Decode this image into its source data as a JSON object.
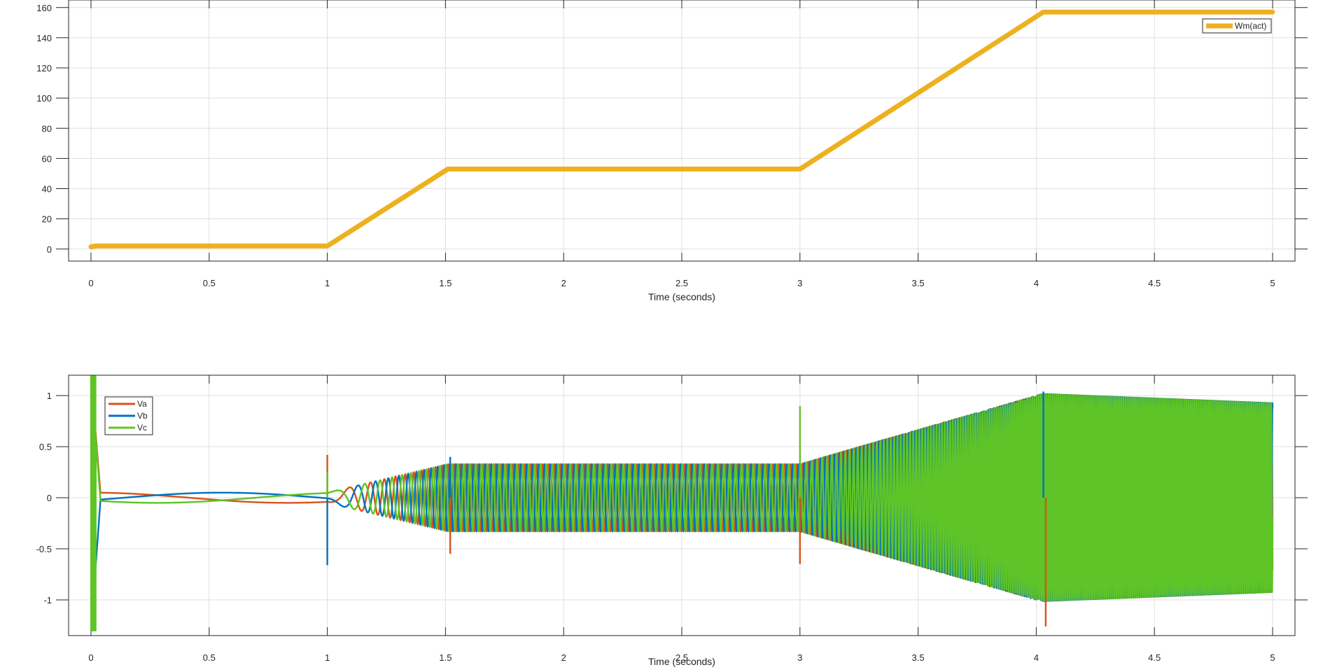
{
  "chart_data": [
    {
      "type": "line",
      "xlabel": "Time (seconds)",
      "ylabel": "",
      "xlim": [
        -0.1,
        5.1
      ],
      "ylim": [
        -8,
        165
      ],
      "xticks": [
        0,
        0.5,
        1,
        1.5,
        2,
        2.5,
        3,
        3.5,
        4,
        4.5,
        5
      ],
      "xtick_labels": [
        "0",
        "0.5",
        "1",
        "1.5",
        "2",
        "2.5",
        "3",
        "3.5",
        "4",
        "4.5",
        "5"
      ],
      "yticks": [
        0,
        20,
        40,
        60,
        80,
        100,
        120,
        140,
        160
      ],
      "ytick_labels": [
        "0",
        "20",
        "40",
        "60",
        "80",
        "100",
        "120",
        "140",
        "160"
      ],
      "grid": true,
      "legend_position": "top-right",
      "series": [
        {
          "name": "Wm(act)",
          "color": "#EDB120",
          "x": [
            0,
            0.02,
            1.0,
            1.51,
            3.0,
            4.03,
            5.0
          ],
          "y": [
            1.5,
            2,
            2,
            53,
            53,
            157,
            157
          ]
        }
      ]
    },
    {
      "type": "line",
      "xlabel": "Time (seconds)",
      "ylabel": "",
      "xlim": [
        -0.1,
        5.1
      ],
      "ylim": [
        -1.35,
        1.2
      ],
      "xticks": [
        0,
        0.5,
        1,
        1.5,
        2,
        2.5,
        3,
        3.5,
        4,
        4.5,
        5
      ],
      "xtick_labels": [
        "0",
        "0.5",
        "1",
        "1.5",
        "2",
        "2.5",
        "3",
        "3.5",
        "4",
        "4.5",
        "5"
      ],
      "yticks": [
        1,
        0.5,
        0,
        -0.5,
        -1
      ],
      "ytick_labels": [
        "1",
        "0.5",
        "0",
        "-0.5",
        "-1"
      ],
      "grid": true,
      "legend_position": "top-left",
      "series": [
        {
          "name": "Va",
          "color": "#D95319",
          "phase_deg": 0
        },
        {
          "name": "Vb",
          "color": "#0072BD",
          "phase_deg": -120
        },
        {
          "name": "Vc",
          "color": "#5FC427",
          "phase_deg": 120
        }
      ],
      "envelope": {
        "t": [
          0.05,
          1.0,
          1.51,
          3.0,
          4.03,
          5.0
        ],
        "amplitude": [
          0.05,
          0.05,
          0.33,
          0.33,
          1.02,
          0.93
        ]
      },
      "frequency_hz": {
        "t": [
          0.05,
          1.0,
          1.51,
          3.0,
          4.03,
          5.0
        ],
        "f": [
          0.6,
          0.6,
          40,
          40,
          120,
          120
        ]
      }
    }
  ]
}
